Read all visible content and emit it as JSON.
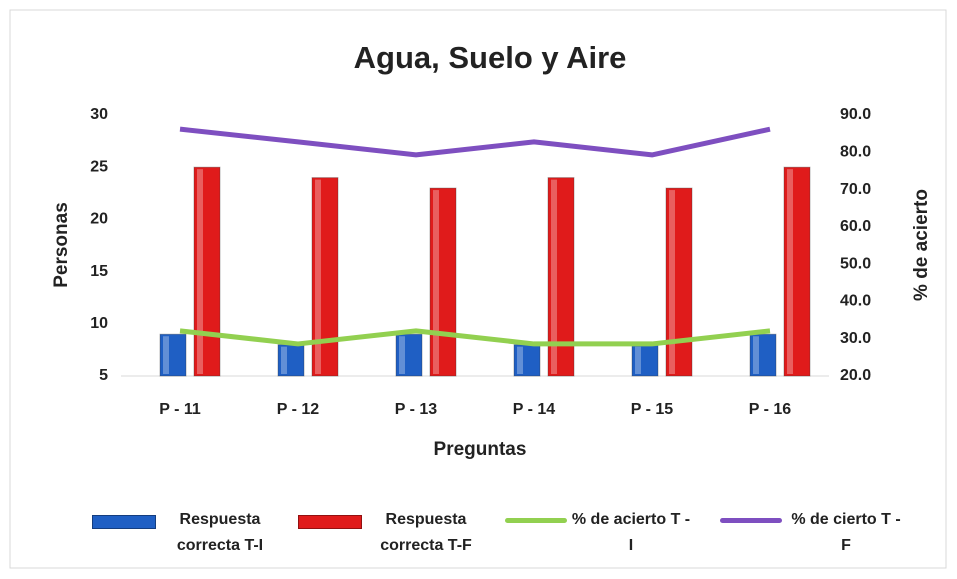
{
  "chart_data": {
    "type": "bar_line",
    "title": "Agua, Suelo y Aire",
    "x_label": "Preguntas",
    "y_label": "Personas",
    "y2_label": "% de acierto",
    "categories": [
      "P - 11",
      "P - 12",
      "P - 13",
      "P - 14",
      "P - 15",
      "P - 16"
    ],
    "series": [
      {
        "name": "Respuesta correcta T-I",
        "type": "bar",
        "color": "#1f5fc4",
        "values": [
          9,
          8,
          9,
          8,
          8,
          9
        ]
      },
      {
        "name": "Respuesta correcta T-F",
        "type": "bar",
        "color": "#e01b1b",
        "values": [
          25,
          24,
          23,
          24,
          23,
          25
        ]
      },
      {
        "name": "% de acierto T - I",
        "type": "line",
        "axis": "y2",
        "color": "#92d050",
        "values": [
          32.1,
          28.6,
          32.1,
          28.6,
          28.6,
          32.1
        ]
      },
      {
        "name": "% de cierto T - F",
        "type": "line",
        "axis": "y2",
        "color": "#7e4fc0",
        "values": [
          86.2,
          82.8,
          79.3,
          82.8,
          79.3,
          86.2
        ]
      }
    ],
    "ylim": [
      5,
      30
    ],
    "yticks": [
      5,
      10,
      15,
      20,
      25,
      30
    ],
    "y2lim": [
      20,
      90
    ],
    "y2ticks": [
      {
        "value": 20,
        "label": "20.0"
      },
      {
        "value": 30,
        "label": "30.0"
      },
      {
        "value": 40,
        "label": "40.0"
      },
      {
        "value": 50,
        "label": "50.0"
      },
      {
        "value": 60,
        "label": "60.0"
      },
      {
        "value": 70,
        "label": "70.0"
      },
      {
        "value": 80,
        "label": "80.0"
      },
      {
        "value": 90,
        "label": "90.0"
      }
    ],
    "legend": "bottom",
    "grid": false
  }
}
